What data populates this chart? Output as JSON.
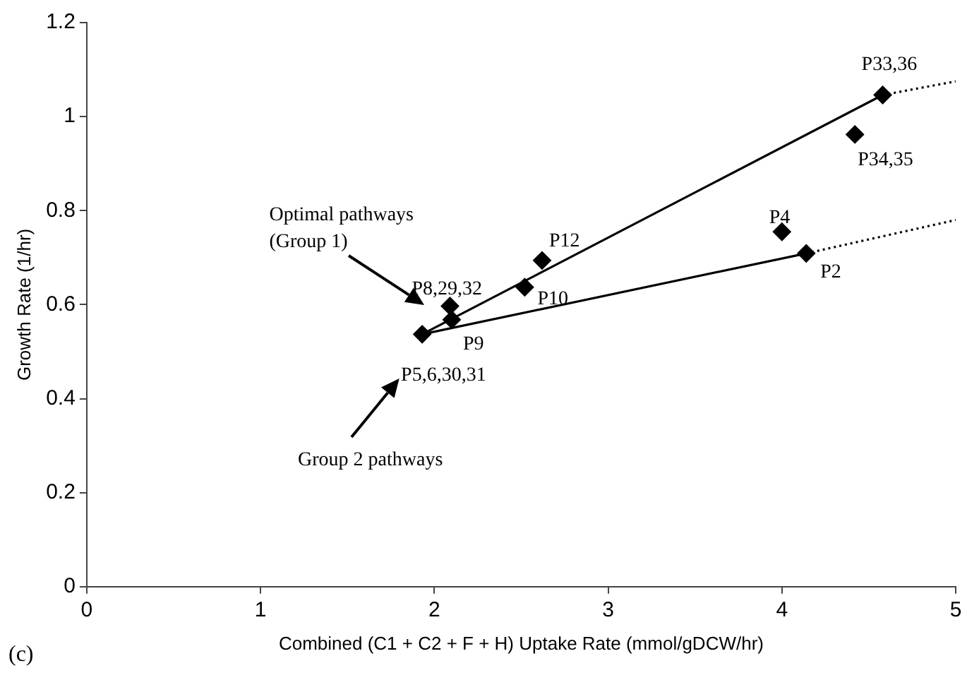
{
  "chart_data": {
    "type": "scatter",
    "xlabel": "Combined (C1 + C2 + F + H) Uptake Rate (mmol/gDCW/hr)",
    "ylabel": "Growth Rate (1/hr)",
    "xlim": [
      0,
      5
    ],
    "xticks": [
      0,
      1,
      2,
      3,
      4,
      5
    ],
    "ylim": [
      0,
      1.2
    ],
    "yticks": [
      0,
      0.2,
      0.4,
      0.6,
      0.8,
      1,
      1.2
    ],
    "grid": false,
    "legend": false,
    "marker": "diamond",
    "series": [
      {
        "type": "line",
        "color": "#000000",
        "line_style": "solid",
        "marker": "none",
        "x": [
          1.93,
          4.58
        ],
        "values": [
          0.537,
          1.046
        ]
      },
      {
        "type": "line",
        "color": "#000000",
        "line_style": "dotted",
        "marker": "none",
        "x": [
          4.58,
          5
        ],
        "values": [
          1.046,
          1.075
        ]
      },
      {
        "type": "line",
        "color": "#000000",
        "line_style": "solid",
        "marker": "none",
        "x": [
          1.93,
          4.14
        ],
        "values": [
          0.537,
          0.709
        ]
      },
      {
        "type": "line",
        "color": "#000000",
        "line_style": "dotted",
        "marker": "none",
        "x": [
          4.14,
          5
        ],
        "values": [
          0.709,
          0.78
        ]
      },
      {
        "type": "scatter",
        "color": "#000000",
        "x": [
          1.93,
          2.09,
          2.1,
          2.52,
          2.62,
          4.0,
          4.14,
          4.42,
          4.58
        ],
        "values": [
          0.537,
          0.597,
          0.568,
          0.637,
          0.694,
          0.755,
          0.709,
          0.962,
          1.046
        ]
      }
    ],
    "annotations": [
      {
        "text": "P33,36",
        "x": 4.58,
        "y": 1.046
      },
      {
        "text": "P34,35",
        "x": 4.42,
        "y": 0.962
      },
      {
        "text": "P4",
        "x": 4.0,
        "y": 0.755
      },
      {
        "text": "P2",
        "x": 4.14,
        "y": 0.709
      },
      {
        "text": "P12",
        "x": 2.62,
        "y": 0.694
      },
      {
        "text": "P10",
        "x": 2.52,
        "y": 0.637
      },
      {
        "text": "P8,29,32",
        "x": 2.09,
        "y": 0.597
      },
      {
        "text": "P9",
        "x": 2.1,
        "y": 0.568
      },
      {
        "text": "P5,6,30,31",
        "x": 1.93,
        "y": 0.537
      },
      "Optimal pathways\n(Group 1)",
      "Group 2 pathways",
      "(c)"
    ]
  }
}
